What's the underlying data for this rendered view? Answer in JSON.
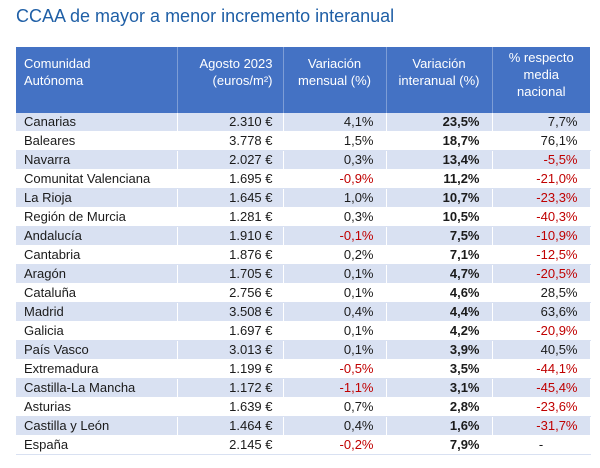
{
  "title": "CCAA de mayor a menor incremento interanual",
  "headers": {
    "region_line1": "Comunidad",
    "region_line2": "Autónoma",
    "price_line1": "Agosto 2023",
    "price_line2": "(euros/m²)",
    "monthly_line1": "Variación",
    "monthly_line2": "mensual (%)",
    "annual_line1": "Variación",
    "annual_line2": "interanual (%)",
    "national_line1": "% respecto",
    "national_line2": "media",
    "national_line3": "nacional"
  },
  "rows": [
    {
      "region": "Canarias",
      "price": "2.310 €",
      "monthly": "4,1%",
      "monthly_neg": false,
      "annual": "23,5%",
      "national": "7,7%",
      "national_neg": false
    },
    {
      "region": "Baleares",
      "price": "3.778 €",
      "monthly": "1,5%",
      "monthly_neg": false,
      "annual": "18,7%",
      "national": "76,1%",
      "national_neg": false
    },
    {
      "region": "Navarra",
      "price": "2.027 €",
      "monthly": "0,3%",
      "monthly_neg": false,
      "annual": "13,4%",
      "national": "-5,5%",
      "national_neg": true
    },
    {
      "region": "Comunitat Valenciana",
      "price": "1.695 €",
      "monthly": "-0,9%",
      "monthly_neg": true,
      "annual": "11,2%",
      "national": "-21,0%",
      "national_neg": true
    },
    {
      "region": "La Rioja",
      "price": "1.645 €",
      "monthly": "1,0%",
      "monthly_neg": false,
      "annual": "10,7%",
      "national": "-23,3%",
      "national_neg": true
    },
    {
      "region": "Región de Murcia",
      "price": "1.281 €",
      "monthly": "0,3%",
      "monthly_neg": false,
      "annual": "10,5%",
      "national": "-40,3%",
      "national_neg": true
    },
    {
      "region": "Andalucía",
      "price": "1.910 €",
      "monthly": "-0,1%",
      "monthly_neg": true,
      "annual": "7,5%",
      "national": "-10,9%",
      "national_neg": true
    },
    {
      "region": "Cantabria",
      "price": "1.876 €",
      "monthly": "0,2%",
      "monthly_neg": false,
      "annual": "7,1%",
      "national": "-12,5%",
      "national_neg": true
    },
    {
      "region": "Aragón",
      "price": "1.705 €",
      "monthly": "0,1%",
      "monthly_neg": false,
      "annual": "4,7%",
      "national": "-20,5%",
      "national_neg": true
    },
    {
      "region": "Cataluña",
      "price": "2.756 €",
      "monthly": "0,1%",
      "monthly_neg": false,
      "annual": "4,6%",
      "national": "28,5%",
      "national_neg": false
    },
    {
      "region": "Madrid",
      "price": "3.508 €",
      "monthly": "0,4%",
      "monthly_neg": false,
      "annual": "4,4%",
      "national": "63,6%",
      "national_neg": false
    },
    {
      "region": "Galicia",
      "price": "1.697 €",
      "monthly": "0,1%",
      "monthly_neg": false,
      "annual": "4,2%",
      "national": "-20,9%",
      "national_neg": true
    },
    {
      "region": "País Vasco",
      "price": "3.013 €",
      "monthly": "0,1%",
      "monthly_neg": false,
      "annual": "3,9%",
      "national": "40,5%",
      "national_neg": false
    },
    {
      "region": "Extremadura",
      "price": "1.199 €",
      "monthly": "-0,5%",
      "monthly_neg": true,
      "annual": "3,5%",
      "national": "-44,1%",
      "national_neg": true
    },
    {
      "region": "Castilla-La Mancha",
      "price": "1.172 €",
      "monthly": "-1,1%",
      "monthly_neg": true,
      "annual": "3,1%",
      "national": "-45,4%",
      "national_neg": true
    },
    {
      "region": "Asturias",
      "price": "1.639 €",
      "monthly": "0,7%",
      "monthly_neg": false,
      "annual": "2,8%",
      "national": "-23,6%",
      "national_neg": true
    },
    {
      "region": "Castilla y León",
      "price": "1.464 €",
      "monthly": "0,4%",
      "monthly_neg": false,
      "annual": "1,6%",
      "national": "-31,7%",
      "national_neg": true
    },
    {
      "region": "España",
      "price": "2.145 €",
      "monthly": "-0,2%",
      "monthly_neg": true,
      "annual": "7,9%",
      "national": "-",
      "national_neg": false
    }
  ],
  "colors": {
    "title": "#1f5fa6",
    "header_bg": "#4472c4",
    "stripe": "#d9e1f2",
    "negative": "#c00000"
  }
}
